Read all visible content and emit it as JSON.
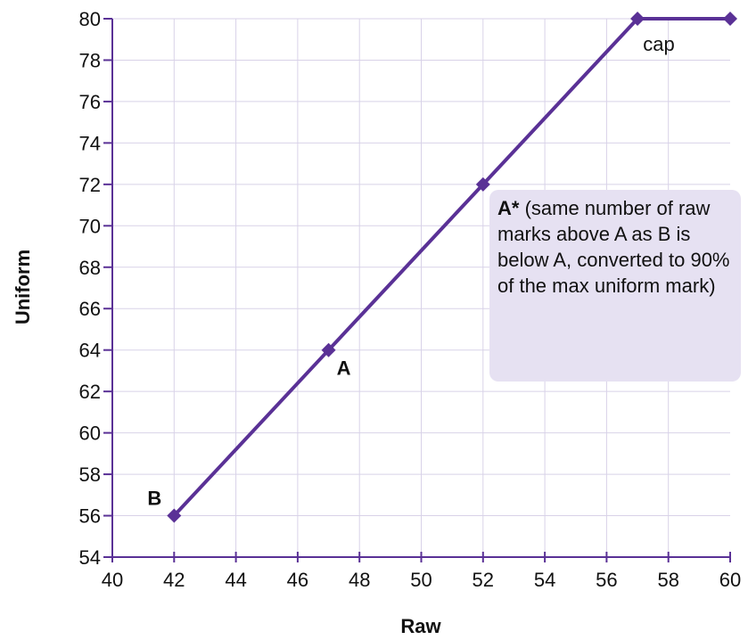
{
  "chart_data": {
    "type": "line",
    "xlabel": "Raw",
    "ylabel": "Uniform",
    "xlim": [
      40,
      60
    ],
    "ylim": [
      54,
      80
    ],
    "x_ticks": [
      "40",
      "42",
      "44",
      "46",
      "48",
      "50",
      "52",
      "54",
      "56",
      "58",
      "60"
    ],
    "y_ticks": [
      "54",
      "56",
      "58",
      "60",
      "62",
      "64",
      "66",
      "68",
      "70",
      "72",
      "74",
      "76",
      "78",
      "80"
    ],
    "grid": true,
    "series": [
      {
        "color": "#5a3196",
        "points": [
          {
            "x": 42,
            "y": 56
          },
          {
            "x": 47,
            "y": 64
          },
          {
            "x": 52,
            "y": 72
          },
          {
            "x": 57,
            "y": 80
          },
          {
            "x": 60,
            "y": 80
          }
        ]
      }
    ],
    "point_labels": [
      {
        "text": "B",
        "x": 42,
        "y": 56
      },
      {
        "text": "A",
        "x": 47,
        "y": 64
      },
      {
        "text": "cap",
        "x": 57,
        "y": 80
      }
    ],
    "annotation": {
      "bold": "A*",
      "text": " (same number of raw marks above A as B is below A, converted to 90% of the max uniform mark)"
    }
  }
}
